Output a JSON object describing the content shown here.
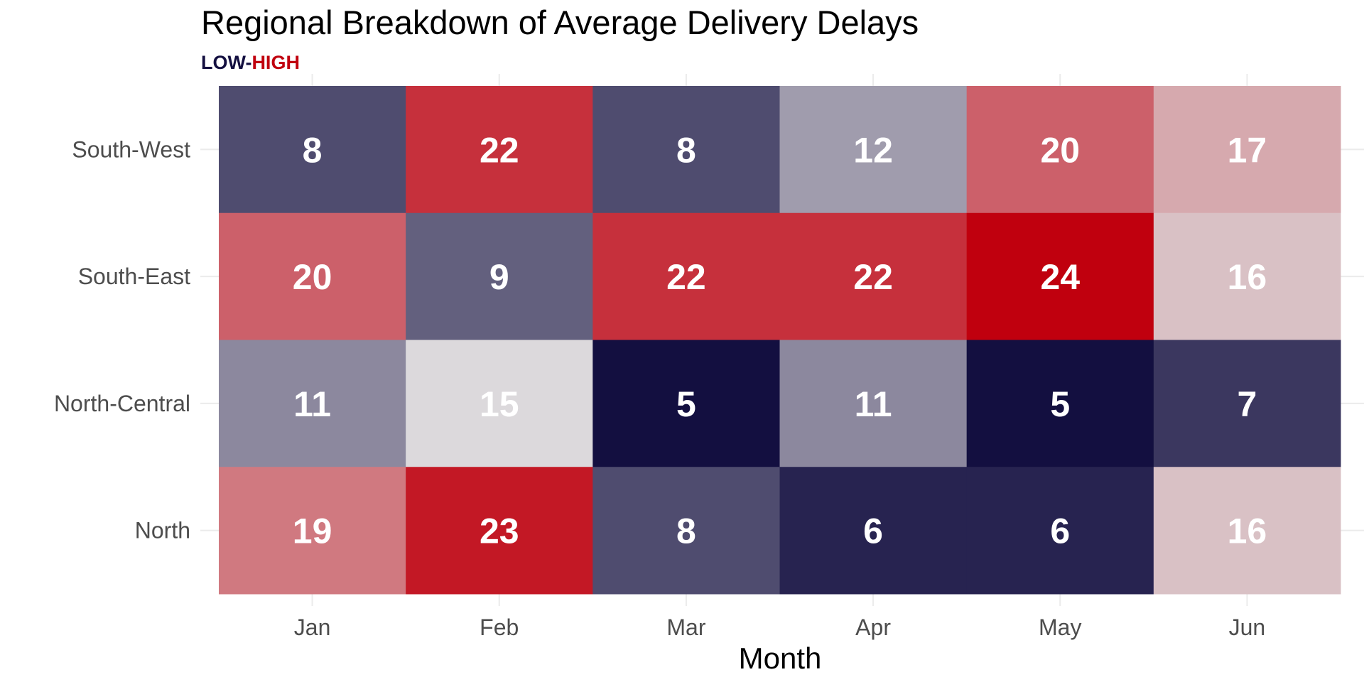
{
  "chart_data": {
    "type": "heatmap",
    "title": "Regional Breakdown of Average Delivery Delays",
    "subtitle": {
      "low_label": "LOW",
      "separator": "-",
      "high_label": "HIGH"
    },
    "xlabel": "Month",
    "ylabel": "",
    "x_categories": [
      "Jan",
      "Feb",
      "Mar",
      "Apr",
      "May",
      "Jun"
    ],
    "y_categories": [
      "South-West",
      "South-East",
      "North-Central",
      "North"
    ],
    "values": [
      [
        8,
        22,
        8,
        12,
        20,
        17
      ],
      [
        20,
        9,
        22,
        22,
        24,
        16
      ],
      [
        11,
        15,
        5,
        11,
        5,
        7
      ],
      [
        19,
        23,
        8,
        6,
        6,
        16
      ]
    ],
    "value_range": [
      5,
      24
    ],
    "color_scale": {
      "low": "#130f40",
      "mid": "#dcd9dc",
      "high": "#c0000e",
      "midpoint": 15
    },
    "cell_label_color": "#ffffff",
    "legend": "none"
  }
}
